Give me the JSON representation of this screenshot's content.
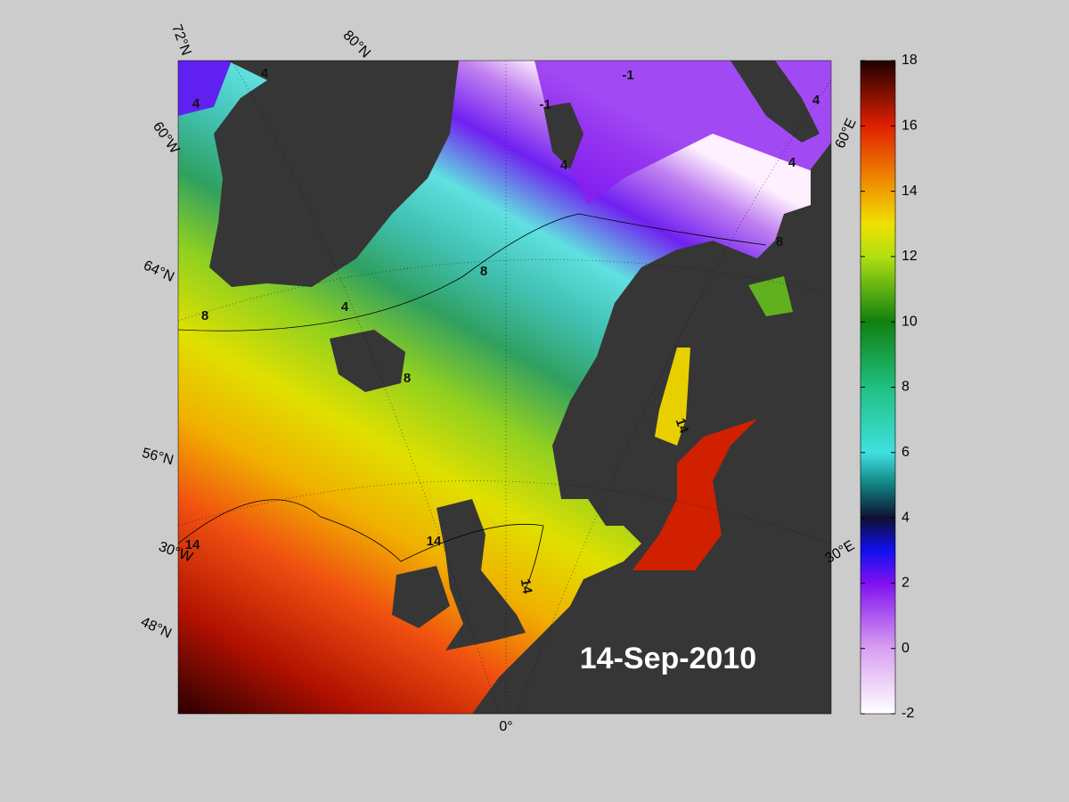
{
  "map": {
    "date": "14-Sep-2010",
    "grid_labels": [
      "72°N",
      "80°N",
      "60°W",
      "64°N",
      "56°N",
      "30°W",
      "48°N",
      "0°",
      "60°E",
      "30°E"
    ],
    "contour_labels": [
      "4",
      "4",
      "4",
      "4",
      "4",
      "4",
      "-1",
      "-1",
      "8",
      "8",
      "8",
      "8",
      "14",
      "14",
      "14",
      "14"
    ],
    "colorbar": {
      "range": [
        -2,
        18
      ],
      "ticks": [
        -2,
        0,
        2,
        4,
        6,
        8,
        10,
        12,
        14,
        16,
        18
      ]
    }
  }
}
